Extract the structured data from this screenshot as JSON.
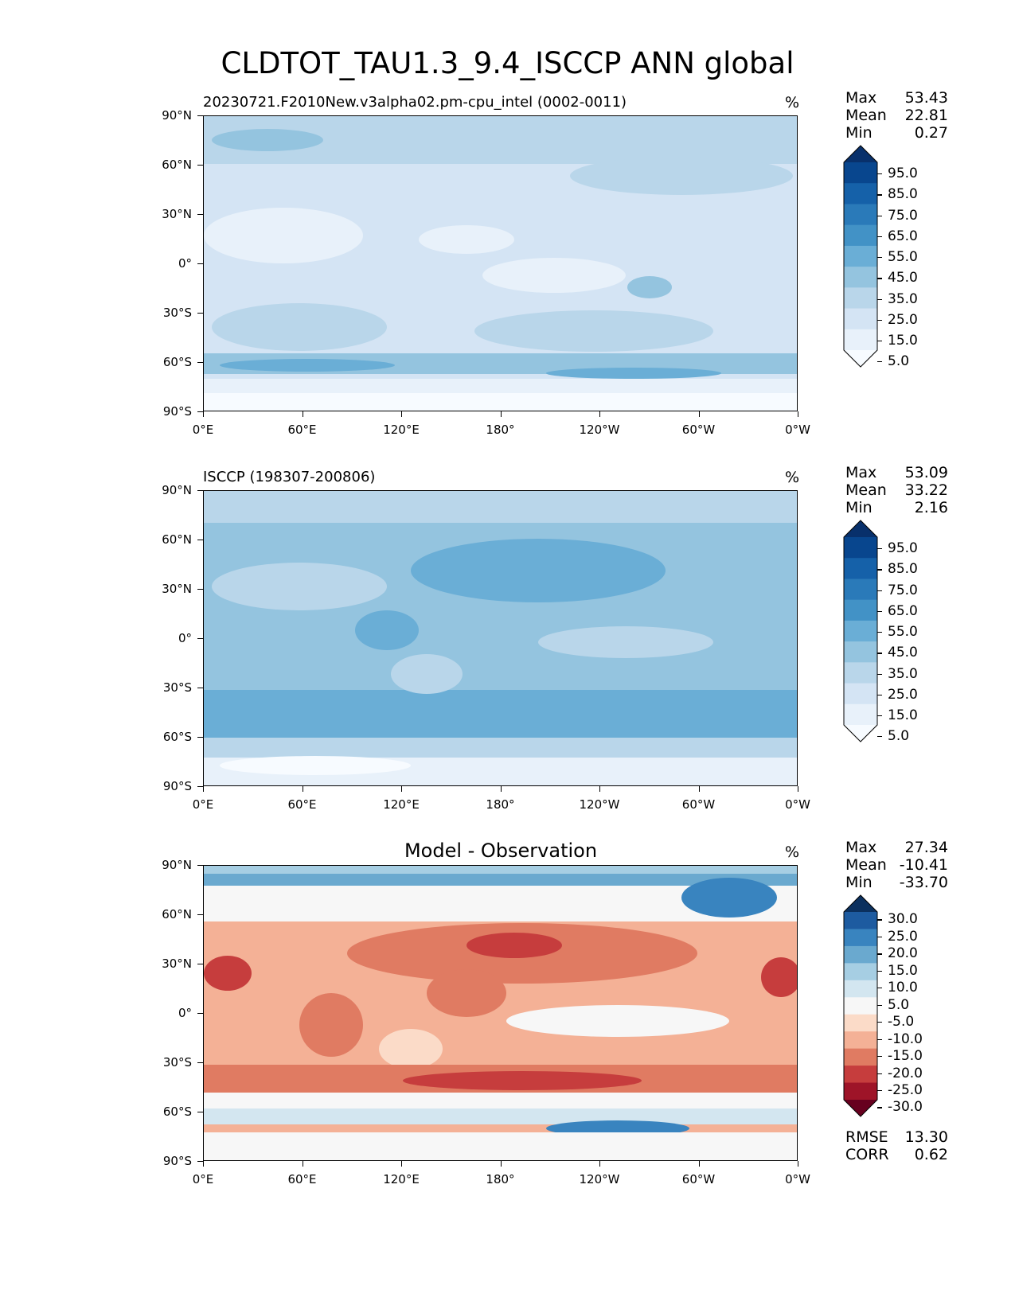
{
  "figure": {
    "title": "CLDTOT_TAU1.3_9.4_ISCCP ANN global"
  },
  "axes": {
    "lat_labels": [
      "90°N",
      "60°N",
      "30°N",
      "0°",
      "30°S",
      "60°S",
      "90°S"
    ],
    "lon_labels": [
      "0°E",
      "60°E",
      "120°E",
      "180°",
      "120°W",
      "60°W",
      "0°W"
    ]
  },
  "panels": [
    {
      "title": "20230721.F2010New.v3alpha02.pm-cpu_intel (0002-0011)",
      "title_style": "left",
      "units": "%",
      "stats": {
        "max_label": "Max",
        "max": "53.43",
        "mean_label": "Mean",
        "mean": "22.81",
        "min_label": "Min",
        "min": "0.27"
      }
    },
    {
      "title": "ISCCP (198307-200806)",
      "title_style": "left",
      "units": "%",
      "stats": {
        "max_label": "Max",
        "max": "53.09",
        "mean_label": "Mean",
        "mean": "33.22",
        "min_label": "Min",
        "min": "2.16"
      }
    },
    {
      "title": "Model - Observation",
      "title_style": "center",
      "units": "%",
      "stats": {
        "max_label": "Max",
        "max": "27.34",
        "mean_label": "Mean",
        "mean": "-10.41",
        "min_label": "Min",
        "min": "-33.70"
      },
      "metrics": {
        "rmse_label": "RMSE",
        "rmse": "13.30",
        "corr_label": "CORR",
        "corr": "0.62"
      }
    }
  ],
  "colorbars": {
    "blues": {
      "labels": [
        "95.0",
        "85.0",
        "75.0",
        "65.0",
        "55.0",
        "45.0",
        "35.0",
        "25.0",
        "15.0",
        "5.0"
      ],
      "colors": [
        "#08306b",
        "#08468e",
        "#1561a9",
        "#2a7ab9",
        "#4292c6",
        "#6aaed6",
        "#94c4df",
        "#b9d6ea",
        "#d4e4f4",
        "#e8f1fa",
        "#f7fbff"
      ]
    },
    "diverging": {
      "labels": [
        "30.0",
        "25.0",
        "20.0",
        "15.0",
        "10.0",
        "5.0",
        "-5.0",
        "-10.0",
        "-15.0",
        "-20.0",
        "-25.0",
        "-30.0"
      ],
      "colors": [
        "#0b305e",
        "#1d5ba0",
        "#3984bf",
        "#6aa9cf",
        "#a6cee3",
        "#d3e6f0",
        "#f7f7f7",
        "#fbdbc8",
        "#f4b196",
        "#e07b62",
        "#c63d3d",
        "#9e1428",
        "#67001f"
      ]
    }
  },
  "chart_data": [
    {
      "type": "heatmap",
      "title": "20230721.F2010New.v3alpha02.pm-cpu_intel (0002-0011)",
      "units": "%",
      "xlabel": "",
      "ylabel": "",
      "xlim": [
        0,
        360
      ],
      "ylim": [
        -90,
        90
      ],
      "x_ticks": [
        "0°E",
        "60°E",
        "120°E",
        "180°",
        "120°W",
        "60°W",
        "0°W"
      ],
      "y_ticks": [
        "90°N",
        "60°N",
        "30°N",
        "0°",
        "30°S",
        "60°S",
        "90°S"
      ],
      "levels": [
        5,
        15,
        25,
        35,
        45,
        55,
        65,
        75,
        85,
        95
      ],
      "stats": {
        "max": 53.43,
        "mean": 22.81,
        "min": 0.27
      }
    },
    {
      "type": "heatmap",
      "title": "ISCCP (198307-200806)",
      "units": "%",
      "xlim": [
        0,
        360
      ],
      "ylim": [
        -90,
        90
      ],
      "levels": [
        5,
        15,
        25,
        35,
        45,
        55,
        65,
        75,
        85,
        95
      ],
      "stats": {
        "max": 53.09,
        "mean": 33.22,
        "min": 2.16
      }
    },
    {
      "type": "heatmap",
      "title": "Model - Observation",
      "units": "%",
      "xlim": [
        0,
        360
      ],
      "ylim": [
        -90,
        90
      ],
      "levels": [
        -30,
        -25,
        -20,
        -15,
        -10,
        -5,
        5,
        10,
        15,
        20,
        25,
        30
      ],
      "stats": {
        "max": 27.34,
        "mean": -10.41,
        "min": -33.7
      },
      "rmse": 13.3,
      "corr": 0.62
    }
  ]
}
